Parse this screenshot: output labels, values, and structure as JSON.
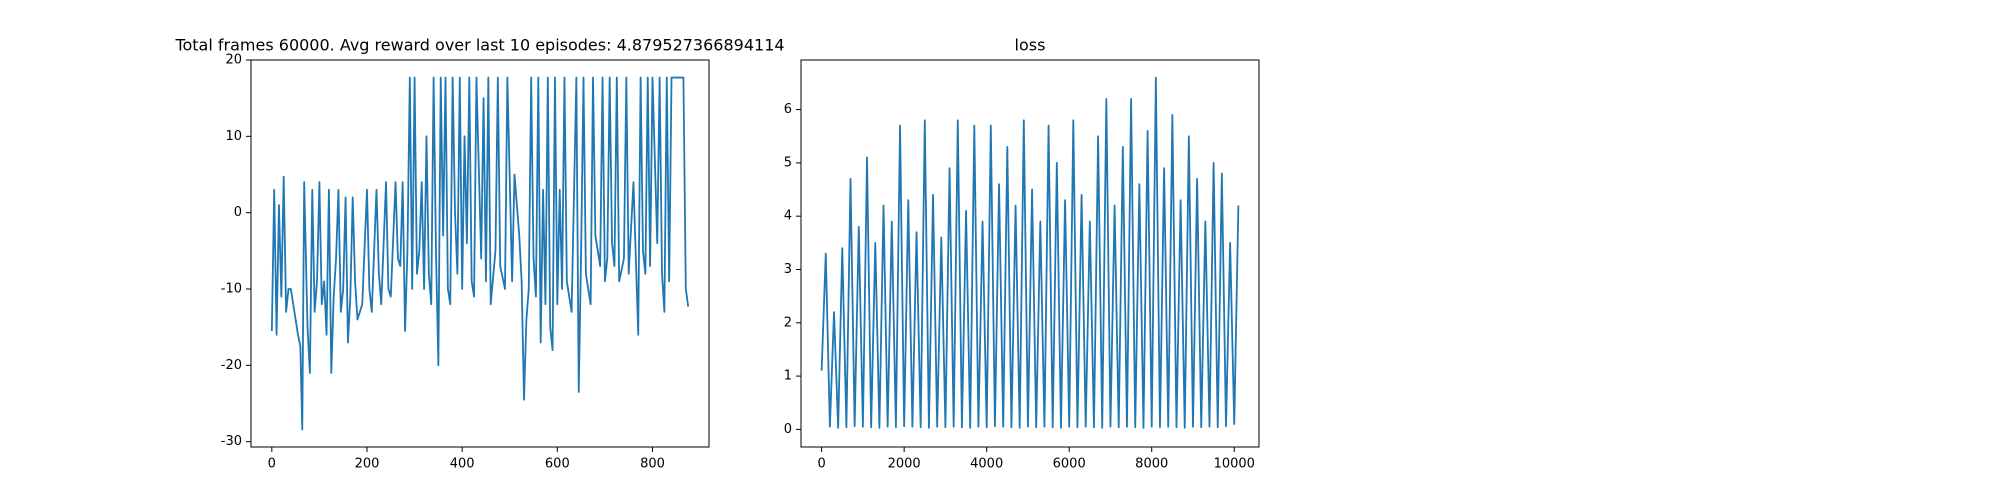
{
  "chart_data": [
    {
      "type": "line",
      "title": "Total frames 60000. Avg reward over last 10 episodes: 4.879527366894114",
      "x": [
        0,
        5,
        10,
        15,
        20,
        25,
        30,
        35,
        40,
        45,
        50,
        55,
        60,
        64,
        68,
        75,
        80,
        85,
        90,
        95,
        100,
        105,
        110,
        115,
        120,
        125,
        130,
        135,
        140,
        145,
        150,
        155,
        160,
        165,
        170,
        175,
        180,
        190,
        200,
        205,
        210,
        220,
        225,
        230,
        240,
        245,
        250,
        260,
        265,
        270,
        275,
        280,
        285,
        290,
        295,
        300,
        305,
        310,
        315,
        320,
        325,
        330,
        335,
        340,
        345,
        350,
        355,
        360,
        365,
        370,
        375,
        380,
        385,
        390,
        395,
        400,
        405,
        410,
        415,
        420,
        425,
        430,
        440,
        445,
        450,
        455,
        460,
        470,
        475,
        480,
        490,
        495,
        505,
        510,
        520,
        525,
        530,
        535,
        540,
        545,
        550,
        555,
        560,
        565,
        570,
        575,
        580,
        585,
        590,
        595,
        600,
        605,
        610,
        615,
        620,
        630,
        640,
        645,
        650,
        655,
        660,
        670,
        675,
        680,
        690,
        695,
        700,
        705,
        710,
        715,
        720,
        725,
        730,
        740,
        745,
        750,
        760,
        765,
        770,
        775,
        780,
        785,
        790,
        795,
        800,
        810,
        815,
        820,
        825,
        830,
        835,
        840,
        850,
        860,
        865,
        870,
        875
      ],
      "series": [
        {
          "color": "#1f77b4",
          "values": [
            -15.5,
            3,
            -16,
            1,
            -11,
            4.7,
            -13,
            -10,
            -10,
            -12,
            -14,
            -16,
            -17.5,
            -28.4,
            4,
            -15,
            -21,
            3,
            -13,
            -9,
            4,
            -12,
            -9,
            -16,
            3,
            -21,
            -11,
            -6,
            3,
            -13,
            -10,
            2,
            -17,
            -11,
            2,
            -9,
            -14,
            -12,
            3,
            -10,
            -13,
            3,
            -8,
            -12,
            4,
            -10,
            -11,
            4,
            -6,
            -7,
            4,
            -15.5,
            -5,
            17.7,
            -10,
            17.7,
            -8,
            -5,
            4,
            -10,
            10,
            -8,
            -12,
            17.7,
            -5,
            -20,
            17.7,
            -3,
            17.7,
            -10,
            -12,
            17.7,
            0,
            -8,
            17.7,
            -10,
            10,
            -4,
            17.7,
            -9,
            -11,
            17.7,
            -6,
            15,
            -9,
            17.7,
            -12,
            -5,
            17.7,
            -7,
            -10,
            17.7,
            -9,
            5,
            -3,
            -9,
            -24.5,
            -14,
            -10,
            17.7,
            -6,
            -11,
            17.7,
            -17,
            3,
            -12,
            17.7,
            -15,
            -18,
            17.7,
            -12,
            3,
            -10,
            17.7,
            -9,
            -13,
            17.7,
            -23.5,
            -5,
            17.7,
            -8,
            -12,
            17.7,
            -3,
            -7,
            17.7,
            -9,
            -6,
            17.7,
            -4,
            -7,
            17.7,
            -9,
            -6,
            17.7,
            -8,
            4,
            -6,
            -16,
            17.7,
            -5,
            -8,
            17.7,
            -7,
            17.7,
            -4,
            17.7,
            -8,
            -13,
            17.7,
            -9,
            17.7,
            17.7,
            17.7,
            17.7,
            -10,
            -12.3
          ]
        }
      ],
      "xlim": [
        -43.75,
        918.75
      ],
      "ylim": [
        -30.7,
        20.0
      ],
      "xticks": [
        0,
        200,
        400,
        600,
        800
      ],
      "yticks": [
        -30,
        -20,
        -10,
        0,
        10,
        20
      ]
    },
    {
      "type": "line",
      "title": "loss",
      "x": [
        0,
        100,
        200,
        300,
        400,
        500,
        600,
        700,
        800,
        900,
        1000,
        1100,
        1200,
        1300,
        1400,
        1500,
        1600,
        1700,
        1800,
        1900,
        2000,
        2100,
        2200,
        2300,
        2400,
        2500,
        2600,
        2700,
        2800,
        2900,
        3000,
        3100,
        3200,
        3300,
        3400,
        3500,
        3600,
        3700,
        3800,
        3900,
        4000,
        4100,
        4200,
        4300,
        4400,
        4500,
        4600,
        4700,
        4800,
        4900,
        5000,
        5100,
        5200,
        5300,
        5400,
        5500,
        5600,
        5700,
        5800,
        5900,
        6000,
        6100,
        6200,
        6300,
        6400,
        6500,
        6600,
        6700,
        6800,
        6900,
        7000,
        7100,
        7200,
        7300,
        7400,
        7500,
        7600,
        7700,
        7800,
        7900,
        8000,
        8100,
        8200,
        8300,
        8400,
        8500,
        8600,
        8700,
        8800,
        8900,
        9000,
        9100,
        9200,
        9300,
        9400,
        9500,
        9600,
        9700,
        9800,
        9900,
        10000,
        10100
      ],
      "series": [
        {
          "color": "#1f77b4",
          "values": [
            1.1,
            3.3,
            0.05,
            2.2,
            0.03,
            3.4,
            0.04,
            4.7,
            0.06,
            3.8,
            0.05,
            5.1,
            0.04,
            3.5,
            0.03,
            4.2,
            0.05,
            3.9,
            0.04,
            5.7,
            0.06,
            4.3,
            0.05,
            3.7,
            0.04,
            5.8,
            0.03,
            4.4,
            0.05,
            3.6,
            0.04,
            4.9,
            0.05,
            5.8,
            0.04,
            4.1,
            0.03,
            5.7,
            0.05,
            3.9,
            0.04,
            5.7,
            0.06,
            4.6,
            0.05,
            5.3,
            0.04,
            4.2,
            0.03,
            5.8,
            0.05,
            4.5,
            0.04,
            3.9,
            0.05,
            5.7,
            0.04,
            5.0,
            0.03,
            4.3,
            0.05,
            5.8,
            0.04,
            4.4,
            0.05,
            3.9,
            0.04,
            5.5,
            0.03,
            6.2,
            0.05,
            4.2,
            0.04,
            5.3,
            0.05,
            6.2,
            0.04,
            4.6,
            0.03,
            5.6,
            0.05,
            6.6,
            0.04,
            4.9,
            0.05,
            5.9,
            0.04,
            4.3,
            0.03,
            5.5,
            0.05,
            4.7,
            0.04,
            3.9,
            0.05,
            5.0,
            0.04,
            4.8,
            0.06,
            3.5,
            0.1,
            4.2
          ]
        }
      ],
      "xlim": [
        -500,
        10600
      ],
      "ylim": [
        -0.33,
        6.93
      ],
      "xticks": [
        0,
        2000,
        4000,
        6000,
        8000,
        10000
      ],
      "yticks": [
        0,
        1,
        2,
        3,
        4,
        5,
        6
      ]
    }
  ]
}
